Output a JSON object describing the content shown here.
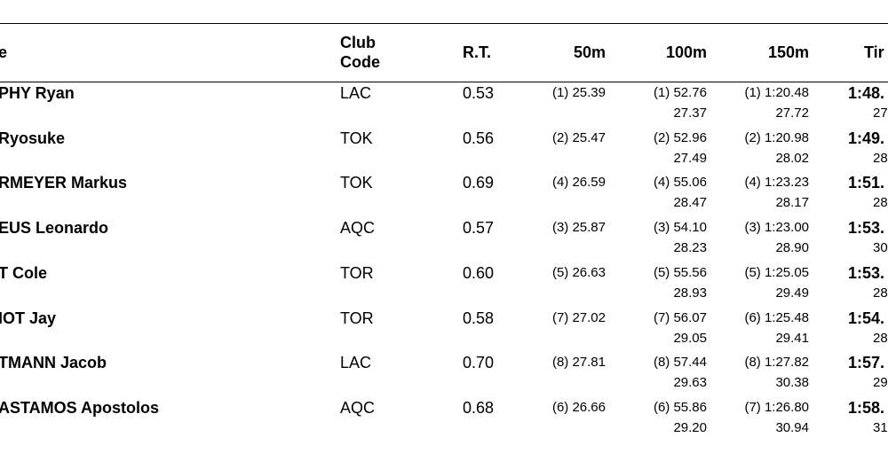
{
  "headers": {
    "name": "e",
    "club_line1": "Club",
    "club_line2": "Code",
    "rt": "R.T.",
    "split50": "50m",
    "split100": "100m",
    "split150": "150m",
    "time": "Tir"
  },
  "rows": [
    {
      "name": "PHY Ryan",
      "club": "LAC",
      "rt": "0.53",
      "s50": "(1) 25.39",
      "s100": "(1) 52.76",
      "sub100": "27.37",
      "s150": "(1) 1:20.48",
      "sub150": "27.72",
      "time": "1:48.",
      "subtime": "27"
    },
    {
      "name": "Ryosuke",
      "club": "TOK",
      "rt": "0.56",
      "s50": "(2) 25.47",
      "s100": "(2) 52.96",
      "sub100": "27.49",
      "s150": "(2) 1:20.98",
      "sub150": "28.02",
      "time": "1:49.",
      "subtime": "28"
    },
    {
      "name": "RMEYER Markus",
      "club": "TOK",
      "rt": "0.69",
      "s50": "(4) 26.59",
      "s100": "(4) 55.06",
      "sub100": "28.47",
      "s150": "(4) 1:23.23",
      "sub150": "28.17",
      "time": "1:51.",
      "subtime": "28"
    },
    {
      "name": "EUS Leonardo",
      "club": "AQC",
      "rt": "0.57",
      "s50": "(3) 25.87",
      "s100": "(3) 54.10",
      "sub100": "28.23",
      "s150": "(3) 1:23.00",
      "sub150": "28.90",
      "time": "1:53.",
      "subtime": "30"
    },
    {
      "name": "T Cole",
      "club": "TOR",
      "rt": "0.60",
      "s50": "(5) 26.63",
      "s100": "(5) 55.56",
      "sub100": "28.93",
      "s150": "(5) 1:25.05",
      "sub150": "29.49",
      "time": "1:53.",
      "subtime": "28"
    },
    {
      "name": "IOT Jay",
      "club": "TOR",
      "rt": "0.58",
      "s50": "(7) 27.02",
      "s100": "(7) 56.07",
      "sub100": "29.05",
      "s150": "(6) 1:25.48",
      "sub150": "29.41",
      "time": "1:54.",
      "subtime": "28"
    },
    {
      "name": "TMANN Jacob",
      "club": "LAC",
      "rt": "0.70",
      "s50": "(8) 27.81",
      "s100": "(8) 57.44",
      "sub100": "29.63",
      "s150": "(8) 1:27.82",
      "sub150": "30.38",
      "time": "1:57.",
      "subtime": "29"
    },
    {
      "name": "ASTAMOS Apostolos",
      "club": "AQC",
      "rt": "0.68",
      "s50": "(6) 26.66",
      "s100": "(6) 55.86",
      "sub100": "29.20",
      "s150": "(7) 1:26.80",
      "sub150": "30.94",
      "time": "1:58.",
      "subtime": "31"
    }
  ]
}
